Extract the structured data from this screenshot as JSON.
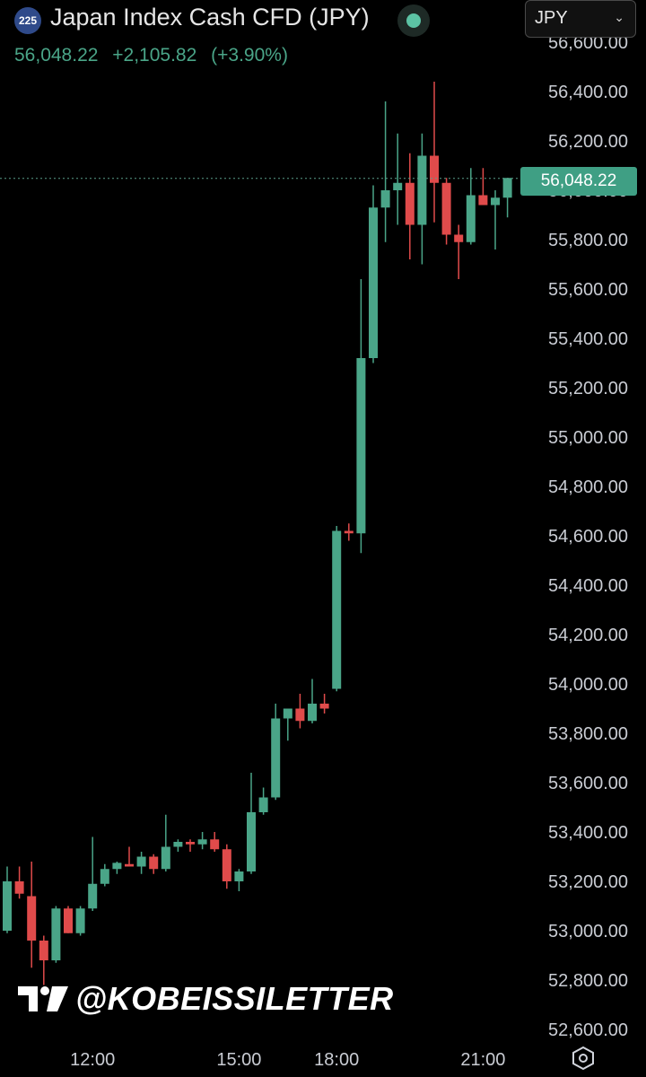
{
  "header": {
    "symbol_badge": "225",
    "title": "Japan Index Cash CFD (JPY)",
    "last_price": "56,048.22",
    "change": "+2,105.82",
    "change_pct": "(+3.90%)",
    "currency_selector": "JPY",
    "colors": {
      "up": "#4aa588",
      "live": "#5cc3a4"
    }
  },
  "watermark": {
    "text": "@KOBEISSILETTER",
    "logo": "tradingview-logo"
  },
  "footer": {
    "settings_icon": "hexagon-settings-icon"
  },
  "chart_data": {
    "type": "candlestick",
    "title": "Japan Index Cash CFD (JPY)",
    "last_price": 56048.22,
    "last_price_label": "56,048.22",
    "ylim": [
      52500,
      56700
    ],
    "y_ticks": [
      52600,
      52800,
      53000,
      53200,
      53400,
      53600,
      53800,
      54000,
      54200,
      54400,
      54600,
      54800,
      55000,
      55200,
      55400,
      55600,
      55800,
      56000,
      56200,
      56400,
      56600
    ],
    "y_tick_labels": [
      "52,600.00",
      "52,800.00",
      "53,000.00",
      "53,200.00",
      "53,400.00",
      "53,600.00",
      "53,800.00",
      "54,000.00",
      "54,200.00",
      "54,400.00",
      "54,600.00",
      "54,800.00",
      "55,000.00",
      "55,200.00",
      "55,400.00",
      "55,600.00",
      "55,800.00",
      "56,000.00",
      "56,200.00",
      "56,400.00",
      "56,600.00"
    ],
    "x_tick_labels": [
      {
        "label": "12:00",
        "index": 7
      },
      {
        "label": "15:00",
        "index": 19
      },
      {
        "label": "18:00",
        "index": 27
      },
      {
        "label": "21:00",
        "index": 39
      }
    ],
    "colors": {
      "up": "#4aa588",
      "down": "#e04b4b"
    },
    "candles": [
      {
        "o": 53000,
        "h": 53260,
        "l": 52990,
        "c": 53200
      },
      {
        "o": 53200,
        "h": 53260,
        "l": 53130,
        "c": 53150
      },
      {
        "o": 53140,
        "h": 53280,
        "l": 52850,
        "c": 52960
      },
      {
        "o": 52960,
        "h": 52980,
        "l": 52780,
        "c": 52880
      },
      {
        "o": 52880,
        "h": 53100,
        "l": 52870,
        "c": 53090
      },
      {
        "o": 53090,
        "h": 53100,
        "l": 52990,
        "c": 52990
      },
      {
        "o": 52990,
        "h": 53100,
        "l": 52980,
        "c": 53090
      },
      {
        "o": 53090,
        "h": 53380,
        "l": 53080,
        "c": 53190
      },
      {
        "o": 53190,
        "h": 53270,
        "l": 53180,
        "c": 53250
      },
      {
        "o": 53250,
        "h": 53280,
        "l": 53230,
        "c": 53275
      },
      {
        "o": 53270,
        "h": 53340,
        "l": 53260,
        "c": 53260
      },
      {
        "o": 53260,
        "h": 53320,
        "l": 53230,
        "c": 53300
      },
      {
        "o": 53300,
        "h": 53310,
        "l": 53230,
        "c": 53250
      },
      {
        "o": 53250,
        "h": 53470,
        "l": 53240,
        "c": 53340
      },
      {
        "o": 53340,
        "h": 53370,
        "l": 53320,
        "c": 53360
      },
      {
        "o": 53360,
        "h": 53370,
        "l": 53320,
        "c": 53350
      },
      {
        "o": 53350,
        "h": 53400,
        "l": 53330,
        "c": 53370
      },
      {
        "o": 53370,
        "h": 53400,
        "l": 53320,
        "c": 53330
      },
      {
        "o": 53330,
        "h": 53350,
        "l": 53170,
        "c": 53200
      },
      {
        "o": 53200,
        "h": 53250,
        "l": 53160,
        "c": 53240
      },
      {
        "o": 53240,
        "h": 53640,
        "l": 53230,
        "c": 53480
      },
      {
        "o": 53480,
        "h": 53580,
        "l": 53470,
        "c": 53540
      },
      {
        "o": 53540,
        "h": 53920,
        "l": 53530,
        "c": 53860
      },
      {
        "o": 53860,
        "h": 53900,
        "l": 53770,
        "c": 53900
      },
      {
        "o": 53900,
        "h": 53960,
        "l": 53820,
        "c": 53850
      },
      {
        "o": 53850,
        "h": 54020,
        "l": 53840,
        "c": 53920
      },
      {
        "o": 53920,
        "h": 53960,
        "l": 53880,
        "c": 53900
      },
      {
        "o": 53980,
        "h": 54640,
        "l": 53970,
        "c": 54620
      },
      {
        "o": 54620,
        "h": 54650,
        "l": 54580,
        "c": 54610
      },
      {
        "o": 54610,
        "h": 55640,
        "l": 54530,
        "c": 55320
      },
      {
        "o": 55320,
        "h": 56020,
        "l": 55300,
        "c": 55930
      },
      {
        "o": 55930,
        "h": 56360,
        "l": 55790,
        "c": 56000
      },
      {
        "o": 56000,
        "h": 56230,
        "l": 55860,
        "c": 56030
      },
      {
        "o": 56030,
        "h": 56150,
        "l": 55720,
        "c": 55860
      },
      {
        "o": 55860,
        "h": 56230,
        "l": 55700,
        "c": 56140
      },
      {
        "o": 56140,
        "h": 56440,
        "l": 55870,
        "c": 56030
      },
      {
        "o": 56030,
        "h": 56050,
        "l": 55780,
        "c": 55820
      },
      {
        "o": 55820,
        "h": 55860,
        "l": 55640,
        "c": 55790
      },
      {
        "o": 55790,
        "h": 56090,
        "l": 55780,
        "c": 55980
      },
      {
        "o": 55980,
        "h": 56090,
        "l": 55940,
        "c": 55940
      },
      {
        "o": 55940,
        "h": 56000,
        "l": 55760,
        "c": 55970
      },
      {
        "o": 55970,
        "h": 56050,
        "l": 55890,
        "c": 56050
      }
    ]
  }
}
